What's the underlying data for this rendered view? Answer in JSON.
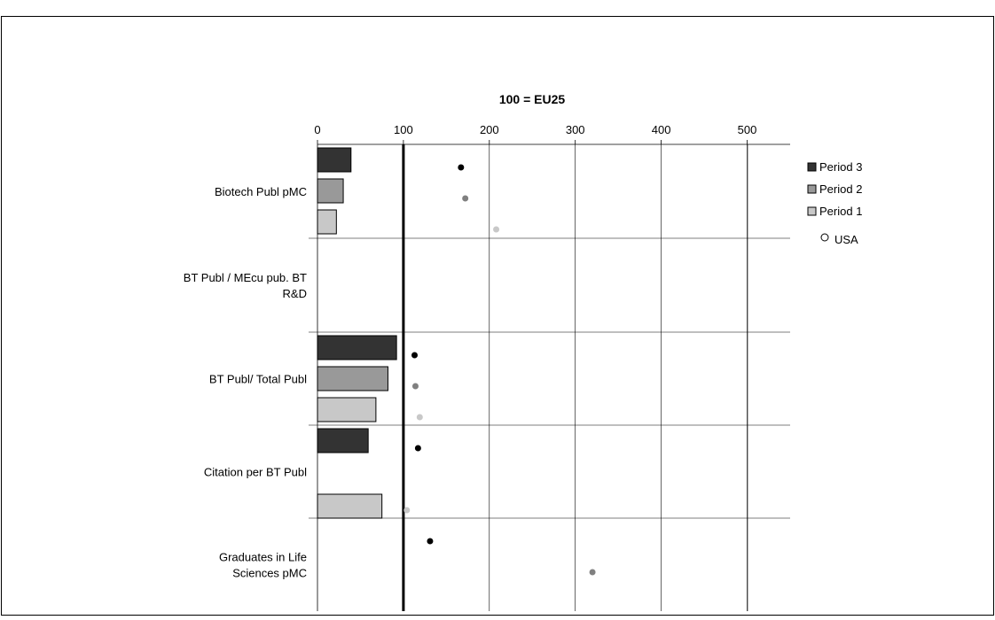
{
  "chart_data": {
    "type": "bar",
    "orientation": "horizontal",
    "title": "100 = EU25",
    "x_ticks": [
      0,
      100,
      200,
      300,
      400,
      500
    ],
    "xlim": [
      0,
      550
    ],
    "reference_line": 100,
    "grid": true,
    "legend_position": "right",
    "categories": [
      "Biotech Publ pMC",
      "BT Publ / MEcu pub. BT R&D",
      "BT Publ/ Total Publ",
      "Citation per BT Publ",
      "Graduates in Life Sciences pMC"
    ],
    "series": [
      {
        "name": "Period 3",
        "color": "#333333",
        "values": [
          39,
          null,
          92,
          59,
          null
        ]
      },
      {
        "name": "Period 2",
        "color": "#999999",
        "values": [
          30,
          null,
          82,
          null,
          null
        ]
      },
      {
        "name": "Period 1",
        "color": "#c8c8c8",
        "values": [
          22,
          null,
          68,
          75,
          null
        ]
      }
    ],
    "usa": {
      "name": "USA",
      "values_period3": [
        167,
        null,
        113,
        117,
        131
      ],
      "values_period2": [
        172,
        null,
        114,
        null,
        320
      ],
      "values_period1": [
        208,
        null,
        119,
        104,
        null
      ]
    }
  }
}
